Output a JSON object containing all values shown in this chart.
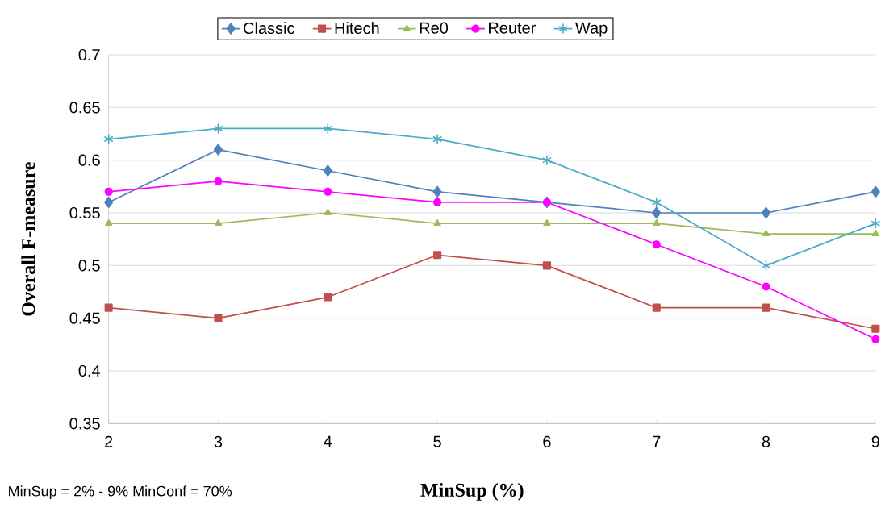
{
  "chart_data": {
    "type": "line",
    "xlabel": "MinSup (%)",
    "ylabel": "Overall  F-measure",
    "x": [
      2,
      3,
      4,
      5,
      6,
      7,
      8,
      9
    ],
    "xlim": [
      2,
      9
    ],
    "xticks": [
      2,
      3,
      4,
      5,
      6,
      7,
      8,
      9
    ],
    "ylim": [
      0.35,
      0.7
    ],
    "yticks": [
      0.35,
      0.4,
      0.45,
      0.5,
      0.55,
      0.6,
      0.65,
      0.7
    ],
    "grid": "y",
    "legend": "top",
    "annotations": [
      "MinSup = 2% - 9% MinConf = 70%"
    ],
    "series": [
      {
        "name": "Classic",
        "color": "#4f81bd",
        "marker": "diamond",
        "values": [
          0.56,
          0.61,
          0.59,
          0.57,
          0.56,
          0.55,
          0.55,
          0.57
        ]
      },
      {
        "name": "Hitech",
        "color": "#c0504d",
        "marker": "square",
        "values": [
          0.46,
          0.45,
          0.47,
          0.51,
          0.5,
          0.46,
          0.46,
          0.44
        ]
      },
      {
        "name": "Re0",
        "color": "#9bbb59",
        "marker": "triangle",
        "values": [
          0.54,
          0.54,
          0.55,
          0.54,
          0.54,
          0.54,
          0.53,
          0.53
        ]
      },
      {
        "name": "Reuter",
        "color": "#ff00ff",
        "marker": "circle",
        "values": [
          0.57,
          0.58,
          0.57,
          0.56,
          0.56,
          0.52,
          0.48,
          0.43
        ]
      },
      {
        "name": "Wap",
        "color": "#4bacc6",
        "marker": "cross",
        "values": [
          0.62,
          0.63,
          0.63,
          0.62,
          0.6,
          0.56,
          0.5,
          0.54
        ]
      }
    ]
  }
}
